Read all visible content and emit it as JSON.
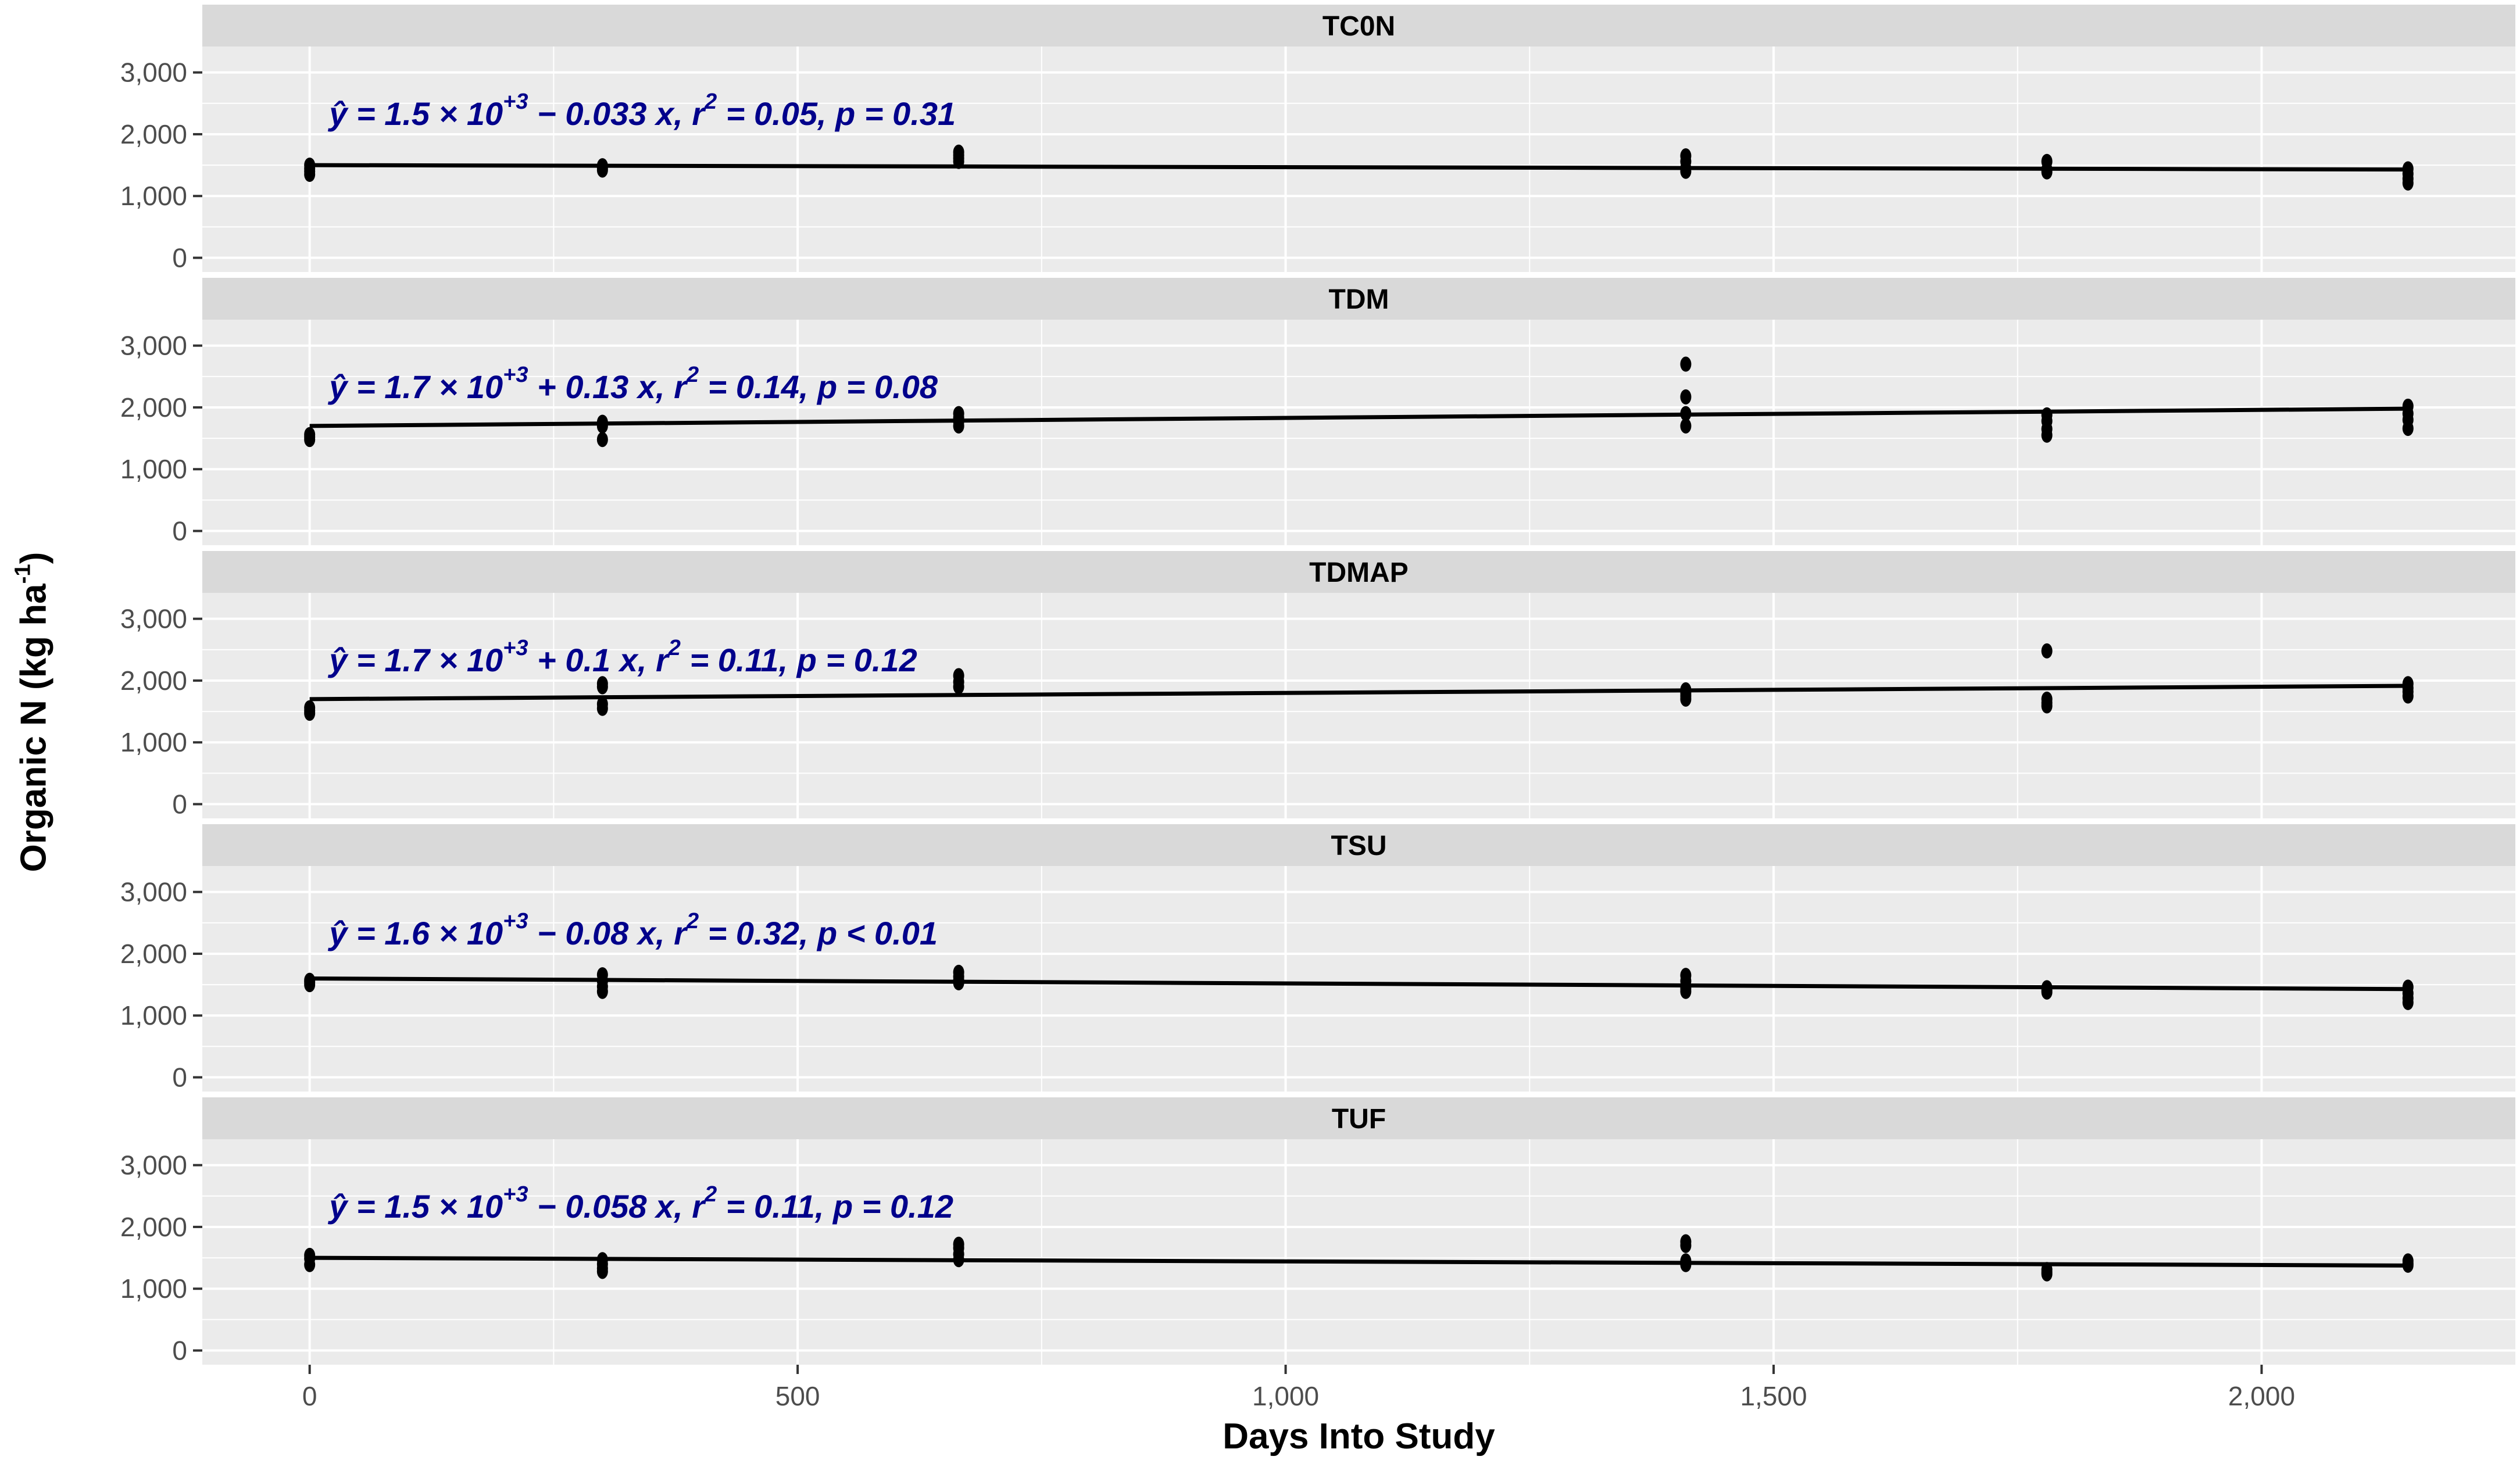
{
  "figure": {
    "xlabel": "Days Into Study",
    "ylabel": {
      "main": "Organic N (kg ha",
      "sup": "-1",
      "close": ")"
    }
  },
  "colors": {
    "panel_bg": "#EBEBEB",
    "strip_bg": "#D9D9D9",
    "grid": "#FFFFFF",
    "axis_text": "#4D4D4D",
    "tick_mark": "#333333",
    "equation": "#00008B",
    "point": "#000000",
    "line": "#000000",
    "strip_text": "#000000"
  },
  "chart_data": {
    "type": "scatter",
    "title": "",
    "xlabel": "Days Into Study",
    "ylabel": "Organic N (kg ha-1)",
    "facet_layout": "5 stacked panels sharing x axis",
    "grid": true,
    "legend_position": "none",
    "xlim": [
      -110,
      2260
    ],
    "ylim": [
      -230,
      3420
    ],
    "x_ticks": [
      0,
      500,
      1000,
      1500,
      2000
    ],
    "x_tick_labels": [
      "0",
      "500",
      "1,000",
      "1,500",
      "2,000"
    ],
    "x_minor_ticks": [
      250,
      750,
      1250,
      1750
    ],
    "y_ticks": [
      0,
      1000,
      2000,
      3000
    ],
    "y_tick_labels": [
      "0",
      "1,000",
      "2,000",
      "3,000"
    ],
    "y_minor_ticks": [
      500,
      1500,
      2500
    ],
    "panels": [
      {
        "label": "TC0N",
        "equation": {
          "lead": "ŷ = 1.5 × 10",
          "sup1": "+3",
          "mid": " − 0.033 x, r",
          "sup2": "2",
          "tail": " = 0.05, p = 0.31"
        },
        "fit": {
          "intercept": 1500,
          "slope": -0.033,
          "r2": 0.05,
          "p": "0.31",
          "x_start": 0,
          "x_end": 2150
        },
        "points": [
          [
            0,
            1500
          ],
          [
            0,
            1445
          ],
          [
            0,
            1400
          ],
          [
            0,
            1350
          ],
          [
            300,
            1490
          ],
          [
            300,
            1455
          ],
          [
            300,
            1420
          ],
          [
            665,
            1710
          ],
          [
            665,
            1660
          ],
          [
            665,
            1610
          ],
          [
            665,
            1560
          ],
          [
            1410,
            1650
          ],
          [
            1410,
            1560
          ],
          [
            1410,
            1450
          ],
          [
            1410,
            1400
          ],
          [
            1780,
            1560
          ],
          [
            1780,
            1430
          ],
          [
            1780,
            1390
          ],
          [
            2150,
            1440
          ],
          [
            2150,
            1360
          ],
          [
            2150,
            1280
          ],
          [
            2150,
            1210
          ]
        ]
      },
      {
        "label": "TDM",
        "equation": {
          "lead": "ŷ = 1.7 × 10",
          "sup1": "+3",
          "mid": " + 0.13 x, r",
          "sup2": "2",
          "tail": " = 0.14, p = 0.08"
        },
        "fit": {
          "intercept": 1700,
          "slope": 0.13,
          "r2": 0.14,
          "p": "0.08",
          "x_start": 0,
          "x_end": 2150
        },
        "points": [
          [
            0,
            1560
          ],
          [
            0,
            1520
          ],
          [
            0,
            1480
          ],
          [
            300,
            1760
          ],
          [
            300,
            1700
          ],
          [
            300,
            1480
          ],
          [
            665,
            1900
          ],
          [
            665,
            1830
          ],
          [
            665,
            1770
          ],
          [
            665,
            1700
          ],
          [
            1410,
            2700
          ],
          [
            1410,
            2170
          ],
          [
            1410,
            1900
          ],
          [
            1410,
            1700
          ],
          [
            1780,
            1880
          ],
          [
            1780,
            1780
          ],
          [
            1780,
            1650
          ],
          [
            1780,
            1550
          ],
          [
            2150,
            2020
          ],
          [
            2150,
            1900
          ],
          [
            2150,
            1800
          ],
          [
            2150,
            1660
          ]
        ]
      },
      {
        "label": "TDMAP",
        "equation": {
          "lead": "ŷ = 1.7 × 10",
          "sup1": "+3",
          "mid": " + 0.1 x, r",
          "sup2": "2",
          "tail": " = 0.11, p = 0.12"
        },
        "fit": {
          "intercept": 1700,
          "slope": 0.1,
          "r2": 0.11,
          "p": "0.12",
          "x_start": 0,
          "x_end": 2150
        },
        "points": [
          [
            0,
            1560
          ],
          [
            0,
            1510
          ],
          [
            0,
            1470
          ],
          [
            300,
            1950
          ],
          [
            300,
            1900
          ],
          [
            300,
            1620
          ],
          [
            300,
            1550
          ],
          [
            665,
            2080
          ],
          [
            665,
            1980
          ],
          [
            665,
            1900
          ],
          [
            1410,
            1850
          ],
          [
            1410,
            1800
          ],
          [
            1410,
            1750
          ],
          [
            1410,
            1700
          ],
          [
            1780,
            2480
          ],
          [
            1780,
            1700
          ],
          [
            1780,
            1640
          ],
          [
            1780,
            1590
          ],
          [
            2150,
            1950
          ],
          [
            2150,
            1880
          ],
          [
            2150,
            1820
          ],
          [
            2150,
            1750
          ]
        ]
      },
      {
        "label": "TSU",
        "equation": {
          "lead": "ŷ = 1.6 × 10",
          "sup1": "+3",
          "mid": " − 0.08 x, r",
          "sup2": "2",
          "tail": " = 0.32, p < 0.01"
        },
        "fit": {
          "intercept": 1600,
          "slope": -0.08,
          "r2": 0.32,
          "p": "<0.01",
          "x_start": 0,
          "x_end": 2150
        },
        "points": [
          [
            0,
            1570
          ],
          [
            0,
            1540
          ],
          [
            0,
            1500
          ],
          [
            300,
            1660
          ],
          [
            300,
            1560
          ],
          [
            300,
            1470
          ],
          [
            300,
            1390
          ],
          [
            665,
            1700
          ],
          [
            665,
            1630
          ],
          [
            665,
            1570
          ],
          [
            665,
            1530
          ],
          [
            1410,
            1650
          ],
          [
            1410,
            1560
          ],
          [
            1410,
            1440
          ],
          [
            1410,
            1390
          ],
          [
            1780,
            1450
          ],
          [
            1780,
            1410
          ],
          [
            1780,
            1380
          ],
          [
            2150,
            1460
          ],
          [
            2150,
            1360
          ],
          [
            2150,
            1280
          ],
          [
            2150,
            1210
          ]
        ]
      },
      {
        "label": "TUF",
        "equation": {
          "lead": "ŷ = 1.5 × 10",
          "sup1": "+3",
          "mid": " − 0.058 x, r",
          "sup2": "2",
          "tail": " = 0.11, p = 0.12"
        },
        "fit": {
          "intercept": 1500,
          "slope": -0.058,
          "r2": 0.11,
          "p": "0.12",
          "x_start": 0,
          "x_end": 2150
        },
        "points": [
          [
            0,
            1540
          ],
          [
            0,
            1490
          ],
          [
            0,
            1390
          ],
          [
            300,
            1470
          ],
          [
            300,
            1400
          ],
          [
            300,
            1330
          ],
          [
            300,
            1280
          ],
          [
            665,
            1720
          ],
          [
            665,
            1660
          ],
          [
            665,
            1560
          ],
          [
            665,
            1470
          ],
          [
            1410,
            1760
          ],
          [
            1410,
            1700
          ],
          [
            1410,
            1450
          ],
          [
            1410,
            1390
          ],
          [
            1780,
            1310
          ],
          [
            1780,
            1270
          ],
          [
            1780,
            1240
          ],
          [
            2150,
            1450
          ],
          [
            2150,
            1410
          ],
          [
            2150,
            1380
          ]
        ]
      }
    ]
  }
}
